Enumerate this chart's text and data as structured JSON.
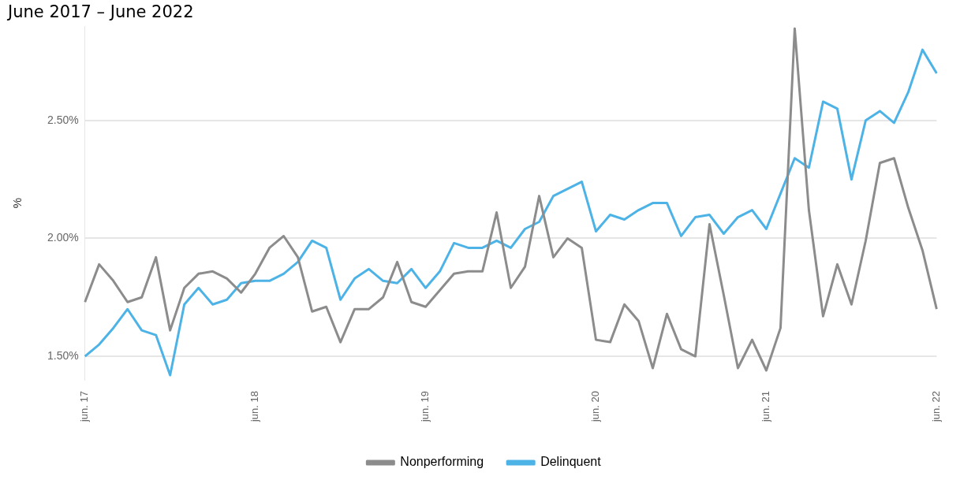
{
  "chart_data": {
    "type": "line",
    "subtitle": "June 2017 – June 2022",
    "ylabel": "%",
    "categories": [
      "jun. 17",
      null,
      null,
      null,
      null,
      null,
      null,
      null,
      null,
      null,
      null,
      null,
      "jun. 18",
      null,
      null,
      null,
      null,
      null,
      null,
      null,
      null,
      null,
      null,
      null,
      "jun. 19",
      null,
      null,
      null,
      null,
      null,
      null,
      null,
      null,
      null,
      null,
      null,
      "jun. 20",
      null,
      null,
      null,
      null,
      null,
      null,
      null,
      null,
      null,
      null,
      null,
      "jun. 21",
      null,
      null,
      null,
      null,
      null,
      null,
      null,
      null,
      null,
      null,
      null,
      "jun. 22"
    ],
    "series": [
      {
        "name": "Nonperforming",
        "color": "#8c8c8c",
        "values": [
          1.73,
          1.89,
          1.82,
          1.73,
          1.75,
          1.92,
          1.61,
          1.79,
          1.85,
          1.86,
          1.83,
          1.77,
          1.85,
          1.96,
          2.01,
          1.92,
          1.69,
          1.71,
          1.56,
          1.7,
          1.7,
          1.75,
          1.9,
          1.73,
          1.71,
          1.78,
          1.85,
          1.86,
          1.86,
          2.11,
          1.79,
          1.88,
          2.18,
          1.92,
          2.0,
          1.96,
          1.57,
          1.56,
          1.72,
          1.65,
          1.45,
          1.68,
          1.53,
          1.5,
          2.06,
          1.76,
          1.45,
          1.57,
          1.44,
          1.62,
          2.89,
          2.12,
          1.67,
          1.89,
          1.72,
          1.99,
          2.32,
          2.34,
          2.13,
          1.95,
          1.7
        ]
      },
      {
        "name": "Delinquent",
        "color": "#4db3e6",
        "values": [
          1.5,
          1.55,
          1.62,
          1.7,
          1.61,
          1.59,
          1.42,
          1.72,
          1.79,
          1.72,
          1.74,
          1.81,
          1.82,
          1.82,
          1.85,
          1.9,
          1.99,
          1.96,
          1.74,
          1.83,
          1.87,
          1.82,
          1.81,
          1.87,
          1.79,
          1.86,
          1.98,
          1.96,
          1.96,
          1.99,
          1.96,
          2.04,
          2.07,
          2.18,
          2.21,
          2.24,
          2.03,
          2.1,
          2.08,
          2.12,
          2.15,
          2.15,
          2.01,
          2.09,
          2.1,
          2.02,
          2.09,
          2.12,
          2.04,
          2.19,
          2.34,
          2.3,
          2.58,
          2.55,
          2.25,
          2.5,
          2.54,
          2.49,
          2.62,
          2.8,
          2.7
        ]
      }
    ],
    "ylim": [
      1.4,
      2.9
    ],
    "yticks": [
      {
        "value": 1.5,
        "label": "1.50%"
      },
      {
        "value": 2.0,
        "label": "2.00%"
      },
      {
        "value": 2.5,
        "label": "2.50%"
      }
    ],
    "grid": "y",
    "legend": "bottom"
  }
}
